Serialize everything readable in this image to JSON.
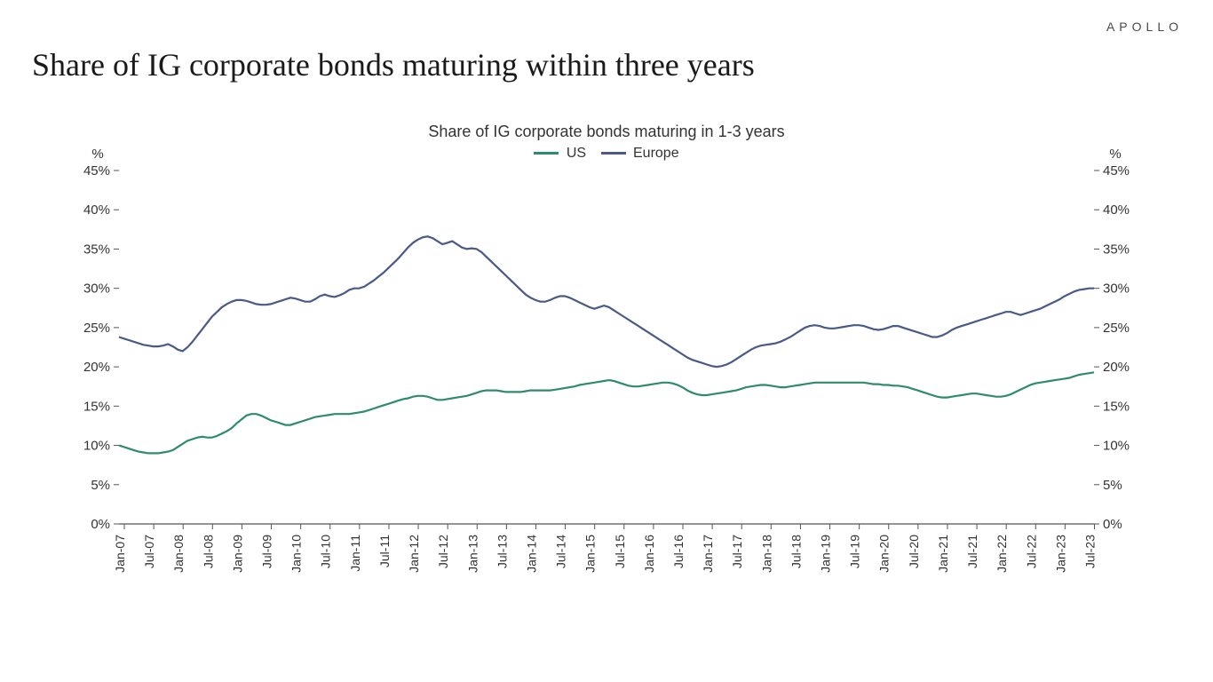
{
  "brand": "APOLLO",
  "main_title": "Share of IG corporate bonds maturing within three years",
  "chart": {
    "type": "line",
    "title": "Share of IG corporate bonds maturing in 1-3 years",
    "title_fontsize": 18,
    "background_color": "#ffffff",
    "line_width": 2.2,
    "y_axis": {
      "unit_label": "%",
      "min": 0,
      "max": 45,
      "tick_step": 5,
      "ticks": [
        "0%",
        "5%",
        "10%",
        "15%",
        "20%",
        "25%",
        "30%",
        "35%",
        "40%",
        "45%"
      ],
      "label_fontsize": 15,
      "dual_axis": true,
      "tick_color": "#555555"
    },
    "x_axis": {
      "labels": [
        "Jan-07",
        "Jul-07",
        "Jan-08",
        "Jul-08",
        "Jan-09",
        "Jul-09",
        "Jan-10",
        "Jul-10",
        "Jan-11",
        "Jul-11",
        "Jan-12",
        "Jul-12",
        "Jan-13",
        "Jul-13",
        "Jan-14",
        "Jul-14",
        "Jan-15",
        "Jul-15",
        "Jan-16",
        "Jul-16",
        "Jan-17",
        "Jul-17",
        "Jan-18",
        "Jul-18",
        "Jan-19",
        "Jul-19",
        "Jan-20",
        "Jul-20",
        "Jan-21",
        "Jul-21",
        "Jan-22",
        "Jul-22",
        "Jan-23",
        "Jul-23"
      ],
      "label_count": 34,
      "n_points": 200,
      "label_fontsize": 14,
      "label_rotation": -90,
      "tick_color": "#555555"
    },
    "legend": {
      "items": [
        {
          "label": "US",
          "color": "#2e8b6f"
        },
        {
          "label": "Europe",
          "color": "#4a5a88"
        }
      ],
      "fontsize": 16
    },
    "series": [
      {
        "name": "US",
        "color": "#2e8b6f",
        "values": [
          10.0,
          9.8,
          9.6,
          9.4,
          9.2,
          9.1,
          9.0,
          9.0,
          9.0,
          9.1,
          9.2,
          9.4,
          9.8,
          10.2,
          10.6,
          10.8,
          11.0,
          11.1,
          11.0,
          11.0,
          11.2,
          11.5,
          11.8,
          12.2,
          12.8,
          13.3,
          13.8,
          14.0,
          14.0,
          13.8,
          13.5,
          13.2,
          13.0,
          12.8,
          12.6,
          12.6,
          12.8,
          13.0,
          13.2,
          13.4,
          13.6,
          13.7,
          13.8,
          13.9,
          14.0,
          14.0,
          14.0,
          14.0,
          14.1,
          14.2,
          14.3,
          14.5,
          14.7,
          14.9,
          15.1,
          15.3,
          15.5,
          15.7,
          15.9,
          16.0,
          16.2,
          16.3,
          16.3,
          16.2,
          16.0,
          15.8,
          15.8,
          15.9,
          16.0,
          16.1,
          16.2,
          16.3,
          16.5,
          16.7,
          16.9,
          17.0,
          17.0,
          17.0,
          16.9,
          16.8,
          16.8,
          16.8,
          16.8,
          16.9,
          17.0,
          17.0,
          17.0,
          17.0,
          17.0,
          17.1,
          17.2,
          17.3,
          17.4,
          17.5,
          17.7,
          17.8,
          17.9,
          18.0,
          18.1,
          18.2,
          18.3,
          18.2,
          18.0,
          17.8,
          17.6,
          17.5,
          17.5,
          17.6,
          17.7,
          17.8,
          17.9,
          18.0,
          18.0,
          17.9,
          17.7,
          17.4,
          17.0,
          16.7,
          16.5,
          16.4,
          16.4,
          16.5,
          16.6,
          16.7,
          16.8,
          16.9,
          17.0,
          17.2,
          17.4,
          17.5,
          17.6,
          17.7,
          17.7,
          17.6,
          17.5,
          17.4,
          17.4,
          17.5,
          17.6,
          17.7,
          17.8,
          17.9,
          18.0,
          18.0,
          18.0,
          18.0,
          18.0,
          18.0,
          18.0,
          18.0,
          18.0,
          18.0,
          18.0,
          17.9,
          17.8,
          17.8,
          17.7,
          17.7,
          17.6,
          17.6,
          17.5,
          17.4,
          17.2,
          17.0,
          16.8,
          16.6,
          16.4,
          16.2,
          16.1,
          16.1,
          16.2,
          16.3,
          16.4,
          16.5,
          16.6,
          16.6,
          16.5,
          16.4,
          16.3,
          16.2,
          16.2,
          16.3,
          16.5,
          16.8,
          17.1,
          17.4,
          17.7,
          17.9,
          18.0,
          18.1,
          18.2,
          18.3,
          18.4,
          18.5,
          18.6,
          18.8,
          19.0,
          19.1,
          19.2,
          19.3
        ]
      },
      {
        "name": "Europe",
        "color": "#4a5a88",
        "values": [
          23.8,
          23.6,
          23.4,
          23.2,
          23.0,
          22.8,
          22.7,
          22.6,
          22.6,
          22.7,
          22.9,
          22.6,
          22.2,
          22.0,
          22.5,
          23.2,
          24.0,
          24.8,
          25.6,
          26.4,
          27.0,
          27.6,
          28.0,
          28.3,
          28.5,
          28.5,
          28.4,
          28.2,
          28.0,
          27.9,
          27.9,
          28.0,
          28.2,
          28.4,
          28.6,
          28.8,
          28.7,
          28.5,
          28.3,
          28.3,
          28.6,
          29.0,
          29.2,
          29.0,
          28.9,
          29.1,
          29.4,
          29.8,
          30.0,
          30.0,
          30.2,
          30.6,
          31.0,
          31.5,
          32.0,
          32.6,
          33.2,
          33.8,
          34.5,
          35.2,
          35.8,
          36.2,
          36.5,
          36.6,
          36.4,
          36.0,
          35.6,
          35.8,
          36.0,
          35.6,
          35.2,
          35.0,
          35.1,
          35.0,
          34.6,
          34.0,
          33.4,
          32.8,
          32.2,
          31.6,
          31.0,
          30.4,
          29.8,
          29.2,
          28.8,
          28.5,
          28.3,
          28.3,
          28.5,
          28.8,
          29.0,
          29.0,
          28.8,
          28.5,
          28.2,
          27.9,
          27.6,
          27.4,
          27.6,
          27.8,
          27.6,
          27.2,
          26.8,
          26.4,
          26.0,
          25.6,
          25.2,
          24.8,
          24.4,
          24.0,
          23.6,
          23.2,
          22.8,
          22.4,
          22.0,
          21.6,
          21.2,
          20.9,
          20.7,
          20.5,
          20.3,
          20.1,
          20.0,
          20.1,
          20.3,
          20.6,
          21.0,
          21.4,
          21.8,
          22.2,
          22.5,
          22.7,
          22.8,
          22.9,
          23.0,
          23.2,
          23.5,
          23.8,
          24.2,
          24.6,
          25.0,
          25.2,
          25.3,
          25.2,
          25.0,
          24.9,
          24.9,
          25.0,
          25.1,
          25.2,
          25.3,
          25.3,
          25.2,
          25.0,
          24.8,
          24.7,
          24.8,
          25.0,
          25.2,
          25.2,
          25.0,
          24.8,
          24.6,
          24.4,
          24.2,
          24.0,
          23.8,
          23.8,
          24.0,
          24.3,
          24.7,
          25.0,
          25.2,
          25.4,
          25.6,
          25.8,
          26.0,
          26.2,
          26.4,
          26.6,
          26.8,
          27.0,
          27.0,
          26.8,
          26.6,
          26.8,
          27.0,
          27.2,
          27.4,
          27.7,
          28.0,
          28.3,
          28.6,
          29.0,
          29.3,
          29.6,
          29.8,
          29.9,
          30.0,
          30.0
        ]
      }
    ]
  }
}
